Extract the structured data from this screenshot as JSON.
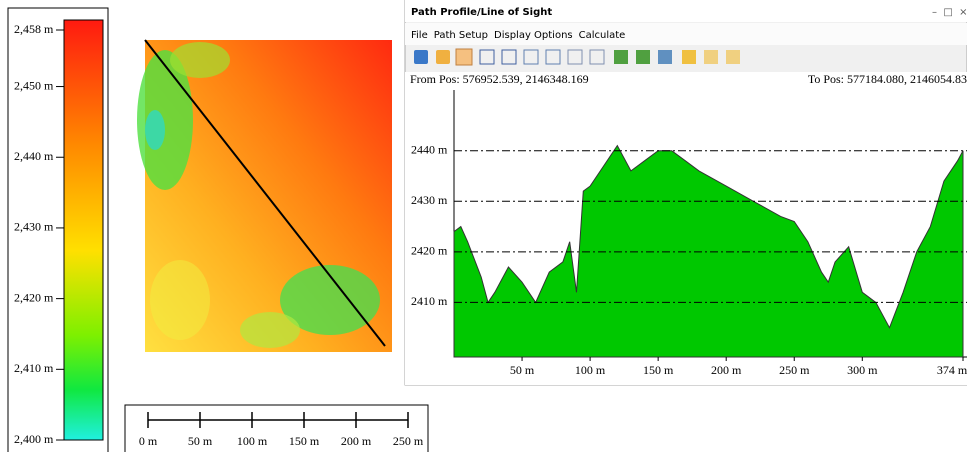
{
  "legend": {
    "range": [
      2400,
      2458
    ],
    "ticks": [
      {
        "value": 2458,
        "label": "2,458 m"
      },
      {
        "value": 2450,
        "label": "2,450 m"
      },
      {
        "value": 2440,
        "label": "2,440 m"
      },
      {
        "value": 2430,
        "label": "2,430 m"
      },
      {
        "value": 2420,
        "label": "2,420 m"
      },
      {
        "value": 2410,
        "label": "2,410 m"
      },
      {
        "value": 2400,
        "label": "2,400 m"
      }
    ]
  },
  "scale_bar": {
    "ticks": [
      {
        "value": 0,
        "label": "0 m"
      },
      {
        "value": 50,
        "label": "50 m"
      },
      {
        "value": 100,
        "label": "100 m"
      },
      {
        "value": 150,
        "label": "150 m"
      },
      {
        "value": 200,
        "label": "200 m"
      },
      {
        "value": 250,
        "label": "250 m"
      }
    ]
  },
  "profile_window": {
    "title": "Path Profile/Line of Sight",
    "menu": [
      "File",
      "Path Setup",
      "Display Options",
      "Calculate"
    ],
    "from_pos": "From Pos: 576952.539, 2146348.169",
    "to_pos": "To Pos: 577184.080, 2146054.83"
  },
  "chart_data": {
    "type": "area",
    "color": "#00c800",
    "x": [
      0,
      5,
      10,
      20,
      25,
      30,
      40,
      50,
      60,
      70,
      80,
      85,
      90,
      95,
      100,
      110,
      120,
      130,
      140,
      150,
      160,
      170,
      180,
      200,
      220,
      240,
      250,
      260,
      270,
      275,
      280,
      290,
      300,
      310,
      320,
      330,
      340,
      350,
      360,
      370,
      374
    ],
    "values": [
      2424,
      2425,
      2422,
      2415,
      2410,
      2412,
      2417,
      2414,
      2410,
      2416,
      2418,
      2422,
      2412,
      2432,
      2433,
      2437,
      2441,
      2436,
      2438,
      2440,
      2440,
      2438,
      2436,
      2433,
      2430,
      2427,
      2426,
      2422,
      2416,
      2414,
      2418,
      2421,
      2412,
      2410,
      2405,
      2412,
      2420,
      2425,
      2434,
      2438,
      2440
    ],
    "xlim": [
      0,
      374
    ],
    "ylim": [
      2400,
      2452
    ],
    "xticks": [
      {
        "value": 50,
        "label": "50 m"
      },
      {
        "value": 100,
        "label": "100 m"
      },
      {
        "value": 150,
        "label": "150 m"
      },
      {
        "value": 200,
        "label": "200 m"
      },
      {
        "value": 250,
        "label": "250 m"
      },
      {
        "value": 300,
        "label": "300 m"
      },
      {
        "value": 374,
        "label": "374 m"
      }
    ],
    "yticks": [
      {
        "value": 2410,
        "label": "2410 m"
      },
      {
        "value": 2420,
        "label": "2420 m"
      },
      {
        "value": 2430,
        "label": "2430 m"
      },
      {
        "value": 2440,
        "label": "2440 m"
      }
    ]
  }
}
